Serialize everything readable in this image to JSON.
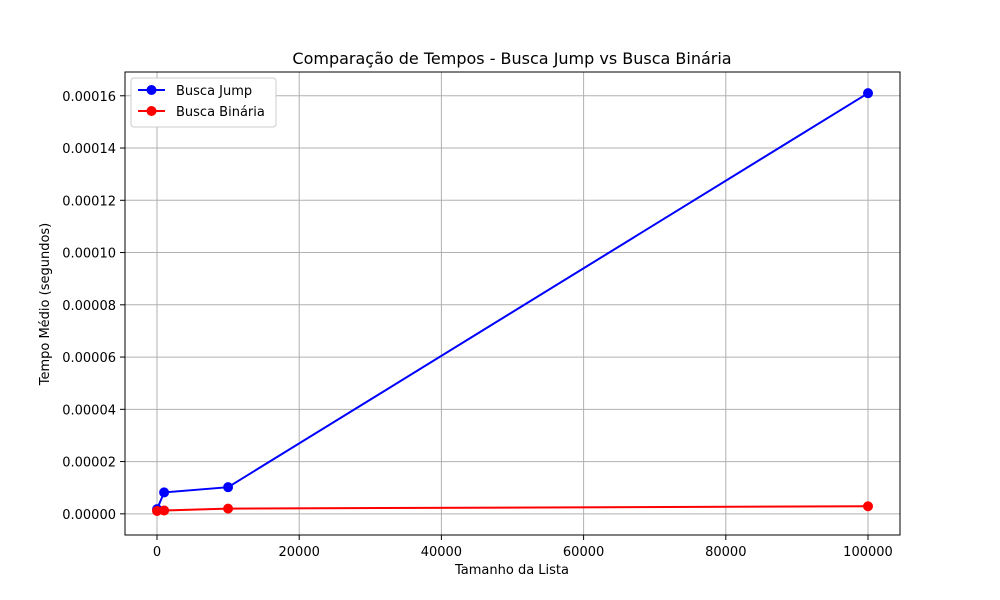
{
  "chart_data": {
    "type": "line",
    "title": "Comparação de Tempos - Busca Jump vs Busca Binária",
    "xlabel": "Tamanho da Lista",
    "ylabel": "Tempo Médio (segundos)",
    "x": [
      10,
      1000,
      10000,
      100000
    ],
    "xlim": [
      -4500,
      104500
    ],
    "ylim": [
      -8.1e-06,
      0.0001691
    ],
    "x_ticks": [
      0,
      20000,
      40000,
      60000,
      80000,
      100000
    ],
    "x_tick_labels": [
      "0",
      "20000",
      "40000",
      "60000",
      "80000",
      "100000"
    ],
    "y_ticks": [
      0,
      2e-05,
      4e-05,
      6e-05,
      8e-05,
      0.0001,
      0.00012,
      0.00014,
      0.00016
    ],
    "y_tick_labels": [
      "0.00000",
      "0.00002",
      "0.00004",
      "0.00006",
      "0.00008",
      "0.00010",
      "0.00012",
      "0.00014",
      "0.00016"
    ],
    "grid": true,
    "legend_position": "top-left",
    "series": [
      {
        "name": "Busca Jump",
        "color": "#0000ff",
        "marker": "circle",
        "values": [
          1.8e-06,
          8.2e-06,
          1.02e-05,
          0.000161
        ]
      },
      {
        "name": "Busca Binária",
        "color": "#ff0000",
        "marker": "circle",
        "values": [
          1.1e-06,
          1.3e-06,
          2e-06,
          2.9e-06
        ]
      }
    ]
  }
}
